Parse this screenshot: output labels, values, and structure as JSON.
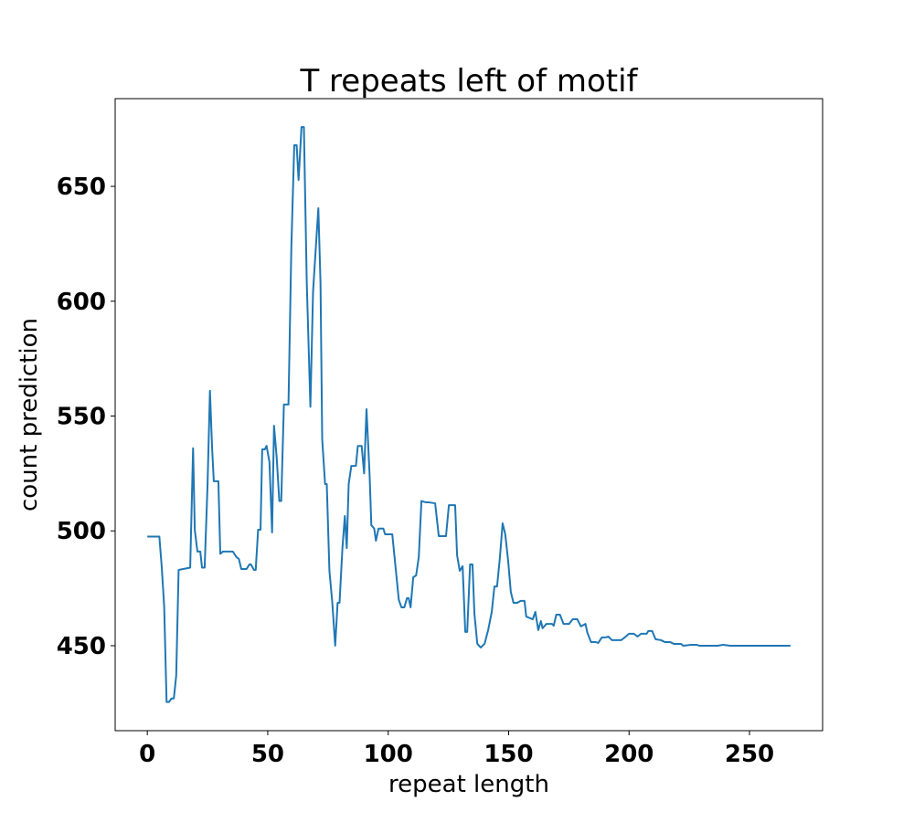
{
  "chart_data": {
    "type": "line",
    "title": "T repeats left of motif",
    "x_label": "repeat length",
    "y_label": "count prediction",
    "xlim": [
      -13.35,
      280.35
    ],
    "ylim": [
      413,
      688.2
    ],
    "xticks": [
      0,
      50,
      100,
      150,
      200,
      250
    ],
    "yticks": [
      450,
      500,
      550,
      600,
      650
    ],
    "x": [
      0,
      5,
      6,
      7,
      8,
      9,
      10,
      11,
      12,
      13,
      17.8,
      19,
      19.7,
      20.8,
      22,
      22.7,
      23.8,
      25,
      26,
      26.9,
      27.6,
      29.5,
      30.3,
      31.4,
      35.5,
      37,
      38,
      39,
      41.2,
      42.4,
      43,
      44.3,
      45,
      46,
      47,
      47.7,
      48.8,
      49.5,
      50.7,
      51.8,
      52.6,
      53.7,
      54.8,
      55.6,
      56.7,
      58.6,
      59.8,
      61,
      62,
      62.8,
      64,
      65,
      66.2,
      67.7,
      68.8,
      70,
      71,
      71.9,
      72.6,
      73.8,
      74.5,
      75.6,
      76.8,
      78,
      79,
      79.8,
      81,
      82,
      82.8,
      83.6,
      84.7,
      86.6,
      87.4,
      89,
      90,
      91,
      92.3,
      93,
      94.2,
      94.9,
      96,
      98,
      98.7,
      101.7,
      104.4,
      105.5,
      106.7,
      107.8,
      108.5,
      109.3,
      110.4,
      111.6,
      112.7,
      113.8,
      115.7,
      116.9,
      119.5,
      121,
      124,
      125.2,
      127.8,
      128.6,
      129.7,
      130.9,
      132,
      132.8,
      134,
      135,
      135.8,
      137,
      138.4,
      140,
      141.5,
      143,
      144.1,
      145.2,
      146.4,
      147.5,
      148.6,
      149.8,
      150.9,
      152,
      153.6,
      155,
      156.6,
      157.3,
      160,
      161.1,
      162.3,
      163.4,
      164.1,
      165.7,
      168,
      168.7,
      169.8,
      171.3,
      172.8,
      175.1,
      176.6,
      178.5,
      180,
      181.9,
      182.7,
      184.2,
      186,
      187.2,
      188.7,
      190.2,
      191.4,
      192.9,
      196.7,
      198.2,
      200,
      202,
      203.5,
      205,
      207.3,
      208,
      209.6,
      211,
      213.3,
      214.8,
      217,
      218.6,
      221.6,
      222.4,
      225.8,
      228,
      229.2,
      236.8,
      239,
      242,
      267
    ],
    "series": [
      {
        "color": "#1f77b4",
        "values": [
          497.5,
          497.5,
          484,
          467,
          425.5,
          425.5,
          427,
          427,
          437,
          483,
          484,
          536,
          500.5,
          491,
          491,
          484,
          484,
          520,
          561,
          536,
          521.6,
          521.6,
          490,
          491,
          491,
          488.6,
          487.8,
          483.4,
          483.4,
          485.4,
          485.4,
          483,
          483,
          500.5,
          500.5,
          535.5,
          535.5,
          537,
          530,
          499.3,
          545.8,
          532,
          513,
          513,
          555,
          555,
          623.8,
          667.9,
          667.9,
          652.8,
          675.8,
          675.8,
          608,
          554,
          604,
          624,
          640.5,
          608,
          540,
          520.4,
          520.4,
          482.6,
          468.7,
          450,
          468.7,
          468.7,
          492.5,
          506.5,
          492.5,
          520.4,
          528.3,
          528.3,
          537,
          537,
          525,
          553,
          524,
          502.5,
          501,
          495.7,
          501,
          501,
          498.5,
          498.5,
          470,
          466.7,
          466.7,
          470.7,
          470.7,
          466.7,
          479.8,
          480.6,
          488.6,
          513,
          512.4,
          512.4,
          512,
          497.7,
          497.7,
          511.2,
          511.2,
          489.4,
          482.6,
          484.6,
          456,
          456,
          485.4,
          485.4,
          463.9,
          450.8,
          449.2,
          450.8,
          456.8,
          464.7,
          475.8,
          475.8,
          488.6,
          503.3,
          498.5,
          487,
          473.5,
          468.7,
          468.7,
          469.5,
          469.5,
          462.7,
          461.5,
          464.7,
          456.8,
          460.7,
          457.6,
          459.5,
          459.5,
          458.7,
          463.5,
          463.5,
          459.5,
          459.5,
          461.5,
          461.5,
          458.4,
          459.5,
          455.6,
          451.6,
          451.6,
          451.2,
          453.6,
          453.6,
          454,
          452.4,
          452.4,
          453.6,
          455.2,
          455.2,
          454,
          455.2,
          455.2,
          456.4,
          456.4,
          452.8,
          452.4,
          451.6,
          451.6,
          450.8,
          450.8,
          450,
          450.4,
          450.4,
          450,
          450,
          450.4,
          450,
          450
        ]
      }
    ]
  }
}
